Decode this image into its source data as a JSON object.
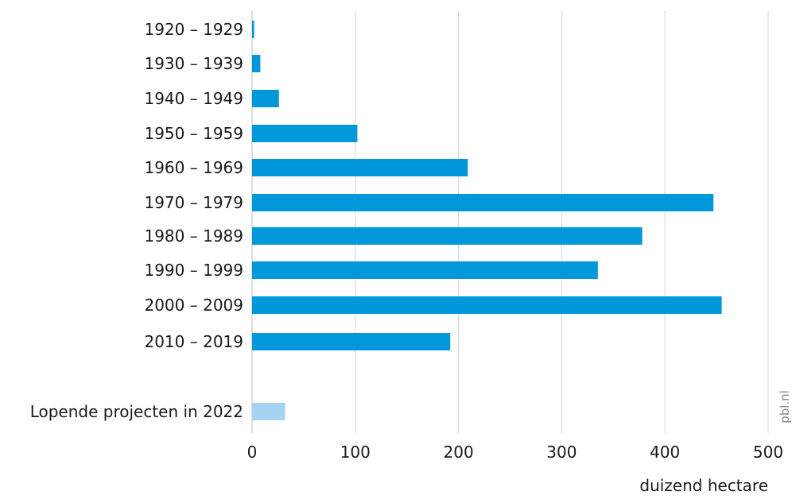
{
  "chart_data": {
    "type": "bar",
    "orientation": "horizontal",
    "categories": [
      "1920 – 1929",
      "1930 – 1939",
      "1940 – 1949",
      "1950 – 1959",
      "1960 – 1969",
      "1970 – 1979",
      "1980 – 1989",
      "1990 – 1999",
      "2000 – 2009",
      "2010 – 2019",
      "Lopende projecten in 2022"
    ],
    "values": [
      2,
      8,
      26,
      102,
      209,
      447,
      378,
      335,
      455,
      192,
      32
    ],
    "highlight_index": 10,
    "xlabel": "duizend hectare",
    "xlim": [
      0,
      500
    ],
    "xticks": [
      0,
      100,
      200,
      300,
      400,
      500
    ],
    "grid": "vertical",
    "colors": {
      "bar": "#0098D9",
      "bar_highlight": "#A6D3F2",
      "grid": "#d4d4d4"
    }
  },
  "source_label": "pbl.nl"
}
